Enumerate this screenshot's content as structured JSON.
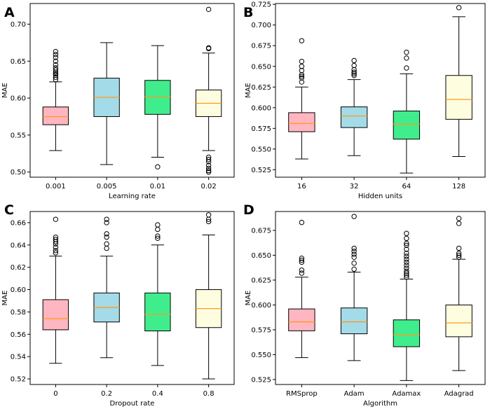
{
  "colors": {
    "box_fills": [
      "#ffb6c1",
      "#a4dbe8",
      "#40ed8c",
      "#fffde0"
    ],
    "median": "#ff9a1a",
    "line": "#000000"
  },
  "chart_data": [
    {
      "panel": "A",
      "type": "box",
      "title": "",
      "xlabel": "Learning rate",
      "ylabel": "MAE",
      "ylim": [
        0.493,
        0.728
      ],
      "yticks": [
        0.5,
        0.55,
        0.6,
        0.65,
        0.7
      ],
      "ytick_labels": [
        "0.50",
        "0.55",
        "0.60",
        "0.65",
        "0.70"
      ],
      "categories": [
        "0.001",
        "0.005",
        "0.01",
        "0.02"
      ],
      "boxes": [
        {
          "whislo": 0.529,
          "q1": 0.564,
          "med": 0.575,
          "q3": 0.588,
          "whishi": 0.622,
          "fliers": [
            0.625,
            0.628,
            0.631,
            0.633,
            0.635,
            0.638,
            0.641,
            0.645,
            0.65,
            0.655,
            0.659,
            0.663
          ]
        },
        {
          "whislo": 0.51,
          "q1": 0.575,
          "med": 0.601,
          "q3": 0.627,
          "whishi": 0.675,
          "fliers": []
        },
        {
          "whislo": 0.52,
          "q1": 0.578,
          "med": 0.602,
          "q3": 0.624,
          "whishi": 0.671,
          "fliers": [
            0.507
          ]
        },
        {
          "whislo": 0.529,
          "q1": 0.575,
          "med": 0.593,
          "q3": 0.611,
          "whishi": 0.661,
          "fliers": [
            0.72,
            0.667,
            0.668,
            0.52,
            0.517,
            0.514,
            0.509,
            0.505,
            0.502,
            0.5
          ]
        }
      ]
    },
    {
      "panel": "B",
      "type": "box",
      "title": "",
      "xlabel": "Hidden units",
      "ylabel": "MAE",
      "ylim": [
        0.516,
        0.726
      ],
      "yticks": [
        0.525,
        0.55,
        0.575,
        0.6,
        0.625,
        0.65,
        0.675,
        0.7,
        0.725
      ],
      "ytick_labels": [
        "0.525",
        "0.550",
        "0.575",
        "0.600",
        "0.625",
        "0.650",
        "0.675",
        "0.700",
        "0.725"
      ],
      "categories": [
        "16",
        "32",
        "64",
        "128"
      ],
      "boxes": [
        {
          "whislo": 0.538,
          "q1": 0.571,
          "med": 0.581,
          "q3": 0.594,
          "whishi": 0.625,
          "fliers": [
            0.631,
            0.636,
            0.638,
            0.64,
            0.645,
            0.65,
            0.656,
            0.681
          ]
        },
        {
          "whislo": 0.542,
          "q1": 0.576,
          "med": 0.59,
          "q3": 0.601,
          "whishi": 0.634,
          "fliers": [
            0.639,
            0.641,
            0.643,
            0.646,
            0.651,
            0.657
          ]
        },
        {
          "whislo": 0.521,
          "q1": 0.562,
          "med": 0.58,
          "q3": 0.596,
          "whishi": 0.641,
          "fliers": [
            0.648,
            0.66,
            0.667
          ]
        },
        {
          "whislo": 0.541,
          "q1": 0.586,
          "med": 0.61,
          "q3": 0.639,
          "whishi": 0.71,
          "fliers": [
            0.721
          ]
        }
      ]
    },
    {
      "panel": "C",
      "type": "box",
      "title": "",
      "xlabel": "Dropout rate",
      "ylabel": "MAE",
      "ylim": [
        0.515,
        0.67
      ],
      "yticks": [
        0.52,
        0.54,
        0.56,
        0.58,
        0.6,
        0.62,
        0.64,
        0.66
      ],
      "ytick_labels": [
        "0.52",
        "0.54",
        "0.56",
        "0.58",
        "0.60",
        "0.62",
        "0.64",
        "0.66"
      ],
      "categories": [
        "0",
        "0.2",
        "0.4",
        "0.8"
      ],
      "boxes": [
        {
          "whislo": 0.534,
          "q1": 0.564,
          "med": 0.574,
          "q3": 0.591,
          "whishi": 0.63,
          "fliers": [
            0.633,
            0.635,
            0.638,
            0.641,
            0.643,
            0.645,
            0.647,
            0.663
          ]
        },
        {
          "whislo": 0.539,
          "q1": 0.571,
          "med": 0.584,
          "q3": 0.597,
          "whishi": 0.63,
          "fliers": [
            0.637,
            0.641,
            0.647,
            0.65,
            0.66,
            0.663
          ]
        },
        {
          "whislo": 0.532,
          "q1": 0.563,
          "med": 0.578,
          "q3": 0.597,
          "whishi": 0.64,
          "fliers": [
            0.646,
            0.648,
            0.654,
            0.658
          ]
        },
        {
          "whislo": 0.52,
          "q1": 0.566,
          "med": 0.583,
          "q3": 0.6,
          "whishi": 0.649,
          "fliers": [
            0.661,
            0.663,
            0.667
          ]
        }
      ]
    },
    {
      "panel": "D",
      "type": "box",
      "title": "",
      "xlabel": "Algorithm",
      "ylabel": "MAE",
      "ylim": [
        0.52,
        0.694
      ],
      "yticks": [
        0.525,
        0.55,
        0.575,
        0.6,
        0.625,
        0.65,
        0.675
      ],
      "ytick_labels": [
        "0.525",
        "0.550",
        "0.575",
        "0.600",
        "0.625",
        "0.650",
        "0.675"
      ],
      "categories": [
        "RMSprop",
        "Adam",
        "Adamax",
        "Adagrad"
      ],
      "boxes": [
        {
          "whislo": 0.547,
          "q1": 0.574,
          "med": 0.583,
          "q3": 0.596,
          "whishi": 0.628,
          "fliers": [
            0.632,
            0.635,
            0.643,
            0.645,
            0.647,
            0.683
          ]
        },
        {
          "whislo": 0.544,
          "q1": 0.571,
          "med": 0.583,
          "q3": 0.597,
          "whishi": 0.633,
          "fliers": [
            0.636,
            0.642,
            0.648,
            0.651,
            0.654,
            0.657,
            0.689
          ]
        },
        {
          "whislo": 0.524,
          "q1": 0.558,
          "med": 0.57,
          "q3": 0.585,
          "whishi": 0.626,
          "fliers": [
            0.628,
            0.63,
            0.632,
            0.634,
            0.637,
            0.64,
            0.643,
            0.646,
            0.649,
            0.652,
            0.656,
            0.66,
            0.662,
            0.667,
            0.672
          ]
        },
        {
          "whislo": 0.534,
          "q1": 0.568,
          "med": 0.582,
          "q3": 0.6,
          "whishi": 0.646,
          "fliers": [
            0.648,
            0.65,
            0.652,
            0.657,
            0.682,
            0.687
          ]
        }
      ]
    }
  ]
}
